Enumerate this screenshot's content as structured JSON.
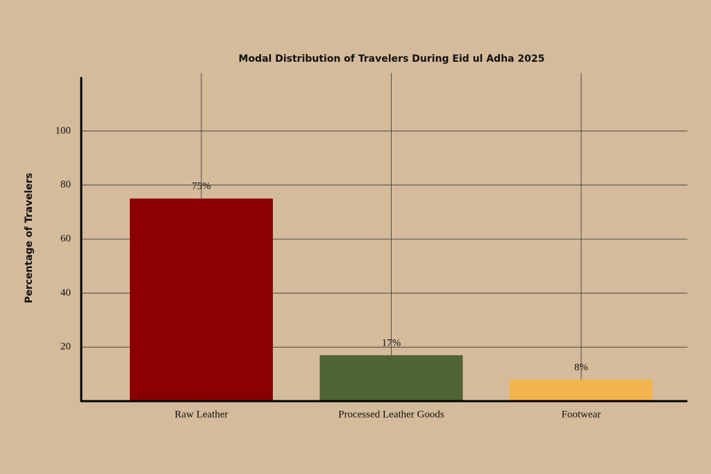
{
  "chart_data": {
    "type": "bar",
    "title": "Modal Distribution of Travelers During Eid ul Adha 2025",
    "y_label": "Percentage of Travelers",
    "categories": [
      "Raw Leather",
      "Processed Leather Goods",
      "Footwear"
    ],
    "values": [
      75,
      17,
      8
    ],
    "value_labels": [
      "75%",
      "17%",
      "8%"
    ],
    "colors": [
      "#8b0000",
      "#4f6436",
      "#f2b44c"
    ],
    "ylim": [
      0,
      120
    ],
    "yticks": [
      20,
      40,
      60,
      80,
      100
    ],
    "grid": true
  }
}
